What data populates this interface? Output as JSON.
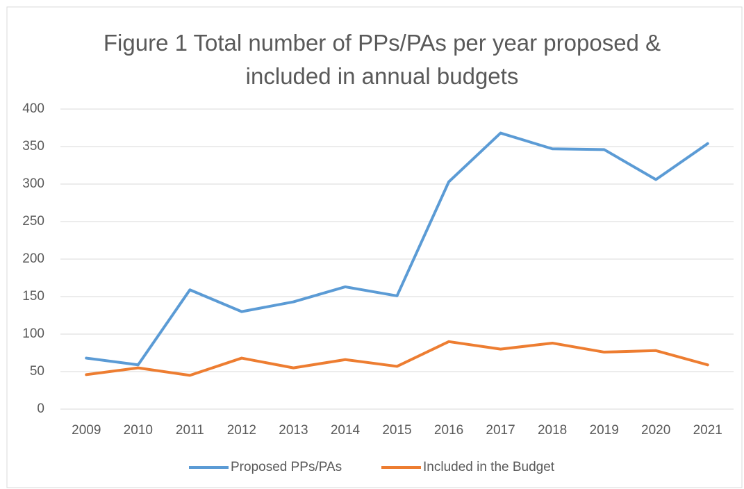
{
  "chart_data": {
    "type": "line",
    "title": "Figure 1 Total number of PPs/PAs per year proposed & included in annual budgets",
    "categories": [
      "2009",
      "2010",
      "2011",
      "2012",
      "2013",
      "2014",
      "2015",
      "2016",
      "2017",
      "2018",
      "2019",
      "2020",
      "2021"
    ],
    "series": [
      {
        "name": "Proposed PPs/PAs",
        "color": "#5b9bd5",
        "values": [
          68,
          59,
          159,
          130,
          143,
          163,
          151,
          303,
          368,
          347,
          346,
          306,
          354
        ]
      },
      {
        "name": "Included in the Budget",
        "color": "#ed7d31",
        "values": [
          46,
          55,
          45,
          68,
          55,
          66,
          57,
          90,
          80,
          88,
          76,
          78,
          59
        ]
      }
    ],
    "ylim": [
      0,
      400
    ],
    "yticks": [
      0,
      50,
      100,
      150,
      200,
      250,
      300,
      350,
      400
    ],
    "grid": true,
    "legend": "bottom"
  }
}
